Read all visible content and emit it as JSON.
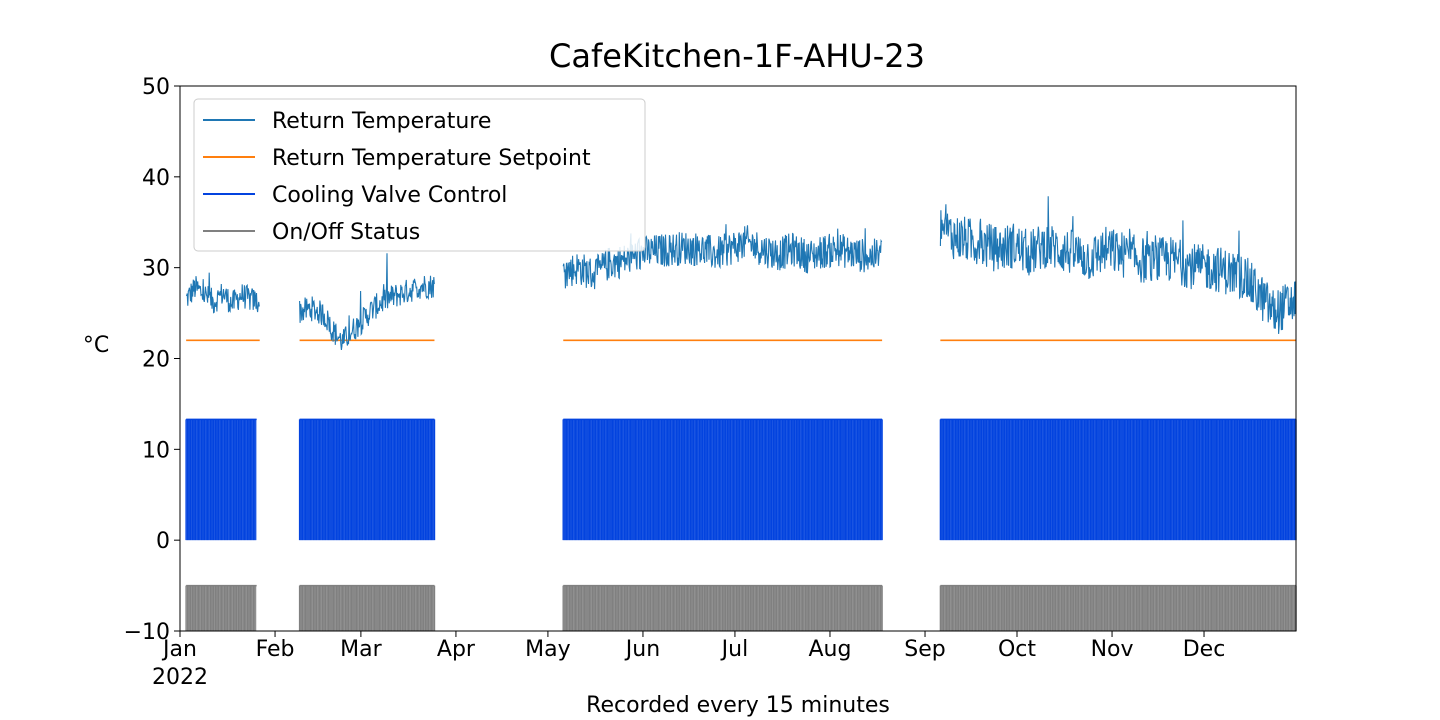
{
  "chart_data": {
    "type": "line",
    "title": "CafeKitchen-1F-AHU-23",
    "xlabel": "Recorded every 15 minutes",
    "ylabel": "°C",
    "ylim": [
      -10,
      50
    ],
    "yticks": [
      -10,
      0,
      10,
      20,
      30,
      40,
      50
    ],
    "ytick_labels": [
      "−10",
      "0",
      "10",
      "20",
      "30",
      "40",
      "50"
    ],
    "xlim": [
      "2022-01-01",
      "2022-12-31"
    ],
    "xticks": [
      {
        "date": "2022-01-01",
        "label": "Jan"
      },
      {
        "date": "2022-02-01",
        "label": "Feb"
      },
      {
        "date": "2022-03-01",
        "label": "Mar"
      },
      {
        "date": "2022-04-01",
        "label": "Apr"
      },
      {
        "date": "2022-05-01",
        "label": "May"
      },
      {
        "date": "2022-06-01",
        "label": "Jun"
      },
      {
        "date": "2022-07-01",
        "label": "Jul"
      },
      {
        "date": "2022-08-01",
        "label": "Aug"
      },
      {
        "date": "2022-09-01",
        "label": "Sep"
      },
      {
        "date": "2022-10-01",
        "label": "Oct"
      },
      {
        "date": "2022-11-01",
        "label": "Nov"
      },
      {
        "date": "2022-12-01",
        "label": "Dec"
      }
    ],
    "year_label": "2022",
    "legend_position": "top-left",
    "grid": false,
    "series": [
      {
        "name": "Return Temperature",
        "color": "#1f77b4",
        "segments": [
          {
            "x": [
              "2022-01-03",
              "2022-01-06",
              "2022-01-09",
              "2022-01-12",
              "2022-01-15",
              "2022-01-18",
              "2022-01-21",
              "2022-01-24",
              "2022-01-27"
            ],
            "y": [
              26.5,
              27.8,
              27.0,
              26.2,
              27.2,
              26.0,
              27.0,
              26.5,
              26.2
            ]
          },
          {
            "x": [
              "2022-02-09",
              "2022-02-13",
              "2022-02-17",
              "2022-02-20",
              "2022-02-23",
              "2022-02-26",
              "2022-03-01",
              "2022-03-05",
              "2022-03-09",
              "2022-03-13",
              "2022-03-17",
              "2022-03-21",
              "2022-03-25"
            ],
            "y": [
              25.2,
              25.5,
              24.8,
              23.0,
              21.8,
              23.0,
              24.0,
              25.5,
              26.5,
              27.0,
              27.5,
              28.0,
              28.0
            ]
          },
          {
            "x": [
              "2022-05-06",
              "2022-05-11",
              "2022-05-16",
              "2022-05-21",
              "2022-05-26",
              "2022-05-31",
              "2022-06-05",
              "2022-06-10",
              "2022-06-15",
              "2022-06-20",
              "2022-06-25",
              "2022-06-30",
              "2022-07-05",
              "2022-07-10",
              "2022-07-15",
              "2022-07-20",
              "2022-07-25",
              "2022-07-30",
              "2022-08-04",
              "2022-08-09",
              "2022-08-14",
              "2022-08-18"
            ],
            "y": [
              29.5,
              30.0,
              29.2,
              30.5,
              30.8,
              31.5,
              31.8,
              32.0,
              32.2,
              32.0,
              31.5,
              32.2,
              32.8,
              32.0,
              31.5,
              32.0,
              31.2,
              31.8,
              32.0,
              31.5,
              31.2,
              31.5
            ]
          },
          {
            "x": [
              "2022-09-06",
              "2022-09-10",
              "2022-09-15",
              "2022-09-20",
              "2022-09-25",
              "2022-09-30",
              "2022-10-05",
              "2022-10-10",
              "2022-10-15",
              "2022-10-20",
              "2022-10-25",
              "2022-10-30",
              "2022-11-04",
              "2022-11-09",
              "2022-11-14",
              "2022-11-19",
              "2022-11-24",
              "2022-11-29",
              "2022-12-04",
              "2022-12-09",
              "2022-12-14",
              "2022-12-19",
              "2022-12-24",
              "2022-12-31"
            ],
            "y": [
              34.5,
              33.5,
              33.0,
              32.5,
              32.0,
              32.5,
              31.5,
              32.5,
              32.0,
              31.5,
              31.0,
              32.0,
              31.5,
              31.0,
              30.5,
              31.0,
              30.5,
              30.0,
              30.0,
              29.5,
              29.0,
              27.0,
              25.0,
              26.5
            ]
          }
        ]
      },
      {
        "name": "Return Temperature Setpoint",
        "color": "#ff7f0e",
        "segments": [
          {
            "x": [
              "2022-01-03",
              "2022-01-27"
            ],
            "y": [
              22,
              22
            ]
          },
          {
            "x": [
              "2022-02-09",
              "2022-03-25"
            ],
            "y": [
              22,
              22
            ]
          },
          {
            "x": [
              "2022-05-06",
              "2022-08-18"
            ],
            "y": [
              22,
              22
            ]
          },
          {
            "x": [
              "2022-09-06",
              "2022-12-31"
            ],
            "y": [
              22,
              22
            ]
          }
        ]
      },
      {
        "name": "Cooling Valve Control",
        "color": "#0343df",
        "low": 0,
        "high": 13.3,
        "segments": [
          {
            "start": "2022-01-03",
            "end": "2022-01-26"
          },
          {
            "start": "2022-02-09",
            "end": "2022-03-25"
          },
          {
            "start": "2022-05-06",
            "end": "2022-08-18"
          },
          {
            "start": "2022-09-06",
            "end": "2022-12-31"
          }
        ]
      },
      {
        "name": "On/Off Status",
        "color": "#808080",
        "low": -10,
        "high": -5,
        "segments": [
          {
            "start": "2022-01-03",
            "end": "2022-01-26"
          },
          {
            "start": "2022-02-09",
            "end": "2022-03-25"
          },
          {
            "start": "2022-05-06",
            "end": "2022-08-18"
          },
          {
            "start": "2022-09-06",
            "end": "2022-12-31"
          }
        ]
      }
    ]
  }
}
